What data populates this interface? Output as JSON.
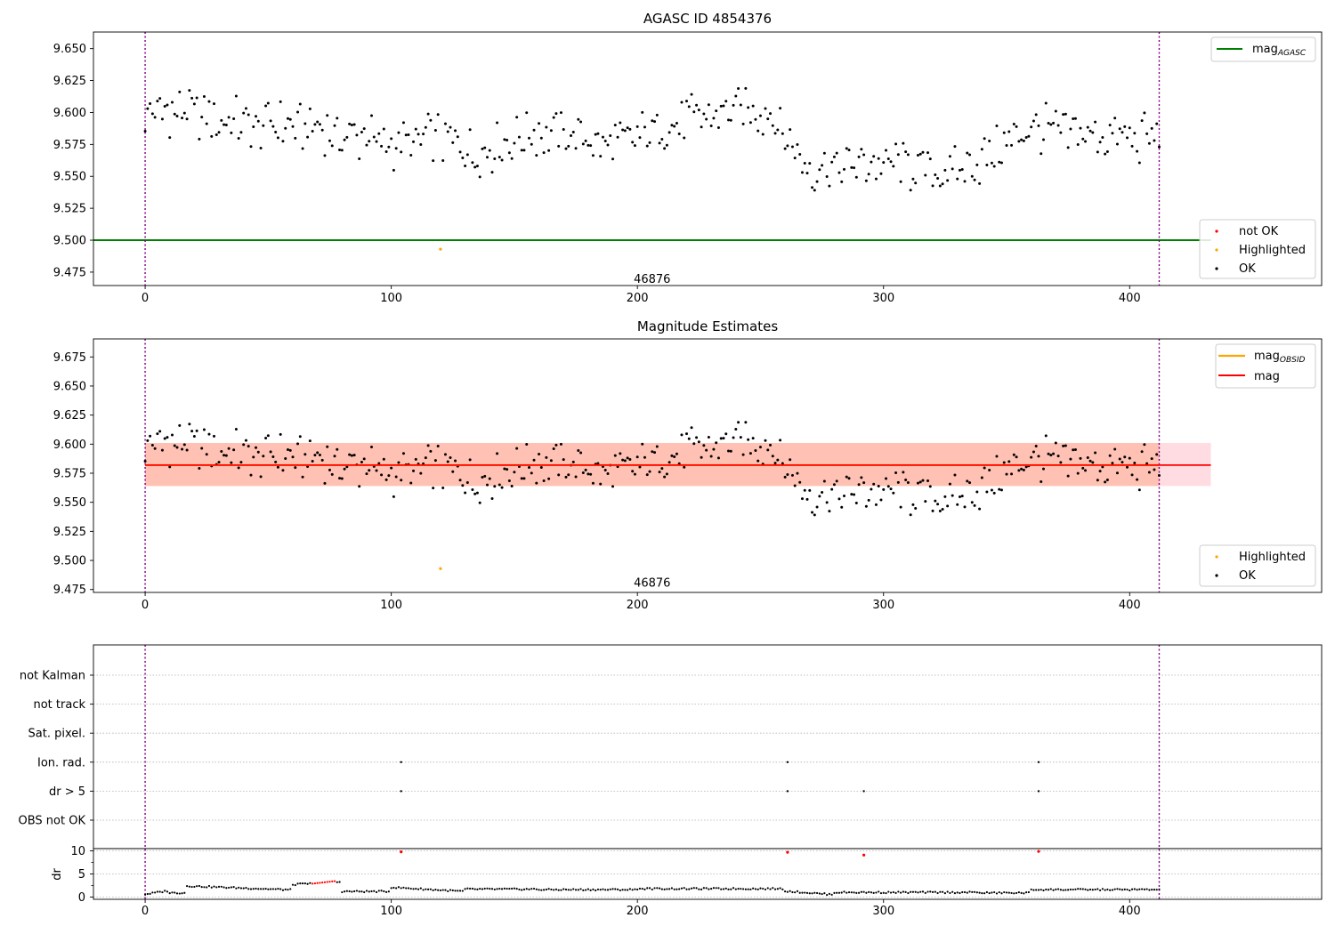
{
  "chart_data": [
    {
      "type": "scatter",
      "title": "AGASC ID 4854376",
      "xlim": [
        -21,
        478
      ],
      "ylim": [
        9.4645,
        9.663
      ],
      "yticks": [
        9.475,
        9.5,
        9.525,
        9.55,
        9.575,
        9.6,
        9.625,
        9.65
      ],
      "ytick_labels": [
        "9.475",
        "9.500",
        "9.525",
        "9.550",
        "9.575",
        "9.600",
        "9.625",
        "9.650"
      ],
      "xticks": [
        0,
        100,
        200,
        300,
        400
      ],
      "xtick_labels": [
        "0",
        "100",
        "200",
        "300",
        "400"
      ],
      "vlines": [
        0,
        412
      ],
      "hlines": [
        {
          "y": 9.5,
          "color": "#008000",
          "x_range": [
            -21,
            433
          ]
        }
      ],
      "annotation": {
        "text": "46876",
        "x": 206,
        "y": 9.4695
      },
      "highlighted_points": [
        {
          "x": 120,
          "y": 9.493
        }
      ],
      "legend_line": [
        {
          "label": "mag",
          "subscript": "AGASC",
          "color": "#008000"
        }
      ],
      "legend_points": [
        {
          "label": "not OK",
          "color": "#ff0000"
        },
        {
          "label": "Highlighted",
          "color": "#ffa500"
        },
        {
          "label": "OK",
          "color": "#000000"
        }
      ]
    },
    {
      "type": "scatter",
      "title": "Magnitude Estimates",
      "xlim": [
        -21,
        478
      ],
      "ylim": [
        9.4725,
        9.6905
      ],
      "yticks": [
        9.475,
        9.5,
        9.525,
        9.55,
        9.575,
        9.6,
        9.625,
        9.65,
        9.675
      ],
      "ytick_labels": [
        "9.475",
        "9.500",
        "9.525",
        "9.550",
        "9.575",
        "9.600",
        "9.625",
        "9.650",
        "9.675"
      ],
      "xticks": [
        0,
        100,
        200,
        300,
        400
      ],
      "xtick_labels": [
        "0",
        "100",
        "200",
        "300",
        "400"
      ],
      "vlines": [
        0,
        412
      ],
      "mean_mag": 9.582,
      "band_mag": [
        9.564,
        9.601
      ],
      "band_obsid": [
        9.564,
        9.601
      ],
      "annotation": {
        "text": "46876",
        "x": 206,
        "y": 9.4805
      },
      "highlighted_points": [
        {
          "x": 120,
          "y": 9.493
        }
      ],
      "legend_line": [
        {
          "label": "mag",
          "subscript": "OBSID",
          "color": "#ffa500"
        },
        {
          "label": "mag",
          "subscript": "",
          "color": "#ff0000"
        }
      ],
      "legend_points": [
        {
          "label": "Highlighted",
          "color": "#ffa500"
        },
        {
          "label": "OK",
          "color": "#000000"
        }
      ]
    },
    {
      "type": "scatter",
      "xlim": [
        -21,
        478
      ],
      "flag_rows": [
        "not Kalman",
        "not track",
        "Sat. pixel.",
        "Ion. rad.",
        "dr > 5",
        "OBS not OK"
      ],
      "flag_points": [
        {
          "row": "Ion. rad.",
          "x": [
            104,
            261,
            363
          ]
        },
        {
          "row": "dr > 5",
          "x": [
            104,
            261,
            292,
            363
          ]
        }
      ],
      "dr_ylabel": "dr",
      "dr_ylim": [
        -0.5,
        10.5
      ],
      "dr_yticks": [
        0,
        5,
        10
      ],
      "dr_ytick_labels": [
        "0",
        "5",
        "10"
      ],
      "dr_flagged_points": [
        {
          "x": 104,
          "y": 9.8
        },
        {
          "x": 261,
          "y": 9.7
        },
        {
          "x": 292,
          "y": 9.1
        },
        {
          "x": 363,
          "y": 9.9
        }
      ],
      "xticks": [
        0,
        100,
        200,
        300,
        400
      ],
      "xtick_labels": [
        "0",
        "100",
        "200",
        "300",
        "400"
      ],
      "vlines": [
        0,
        412
      ]
    }
  ]
}
